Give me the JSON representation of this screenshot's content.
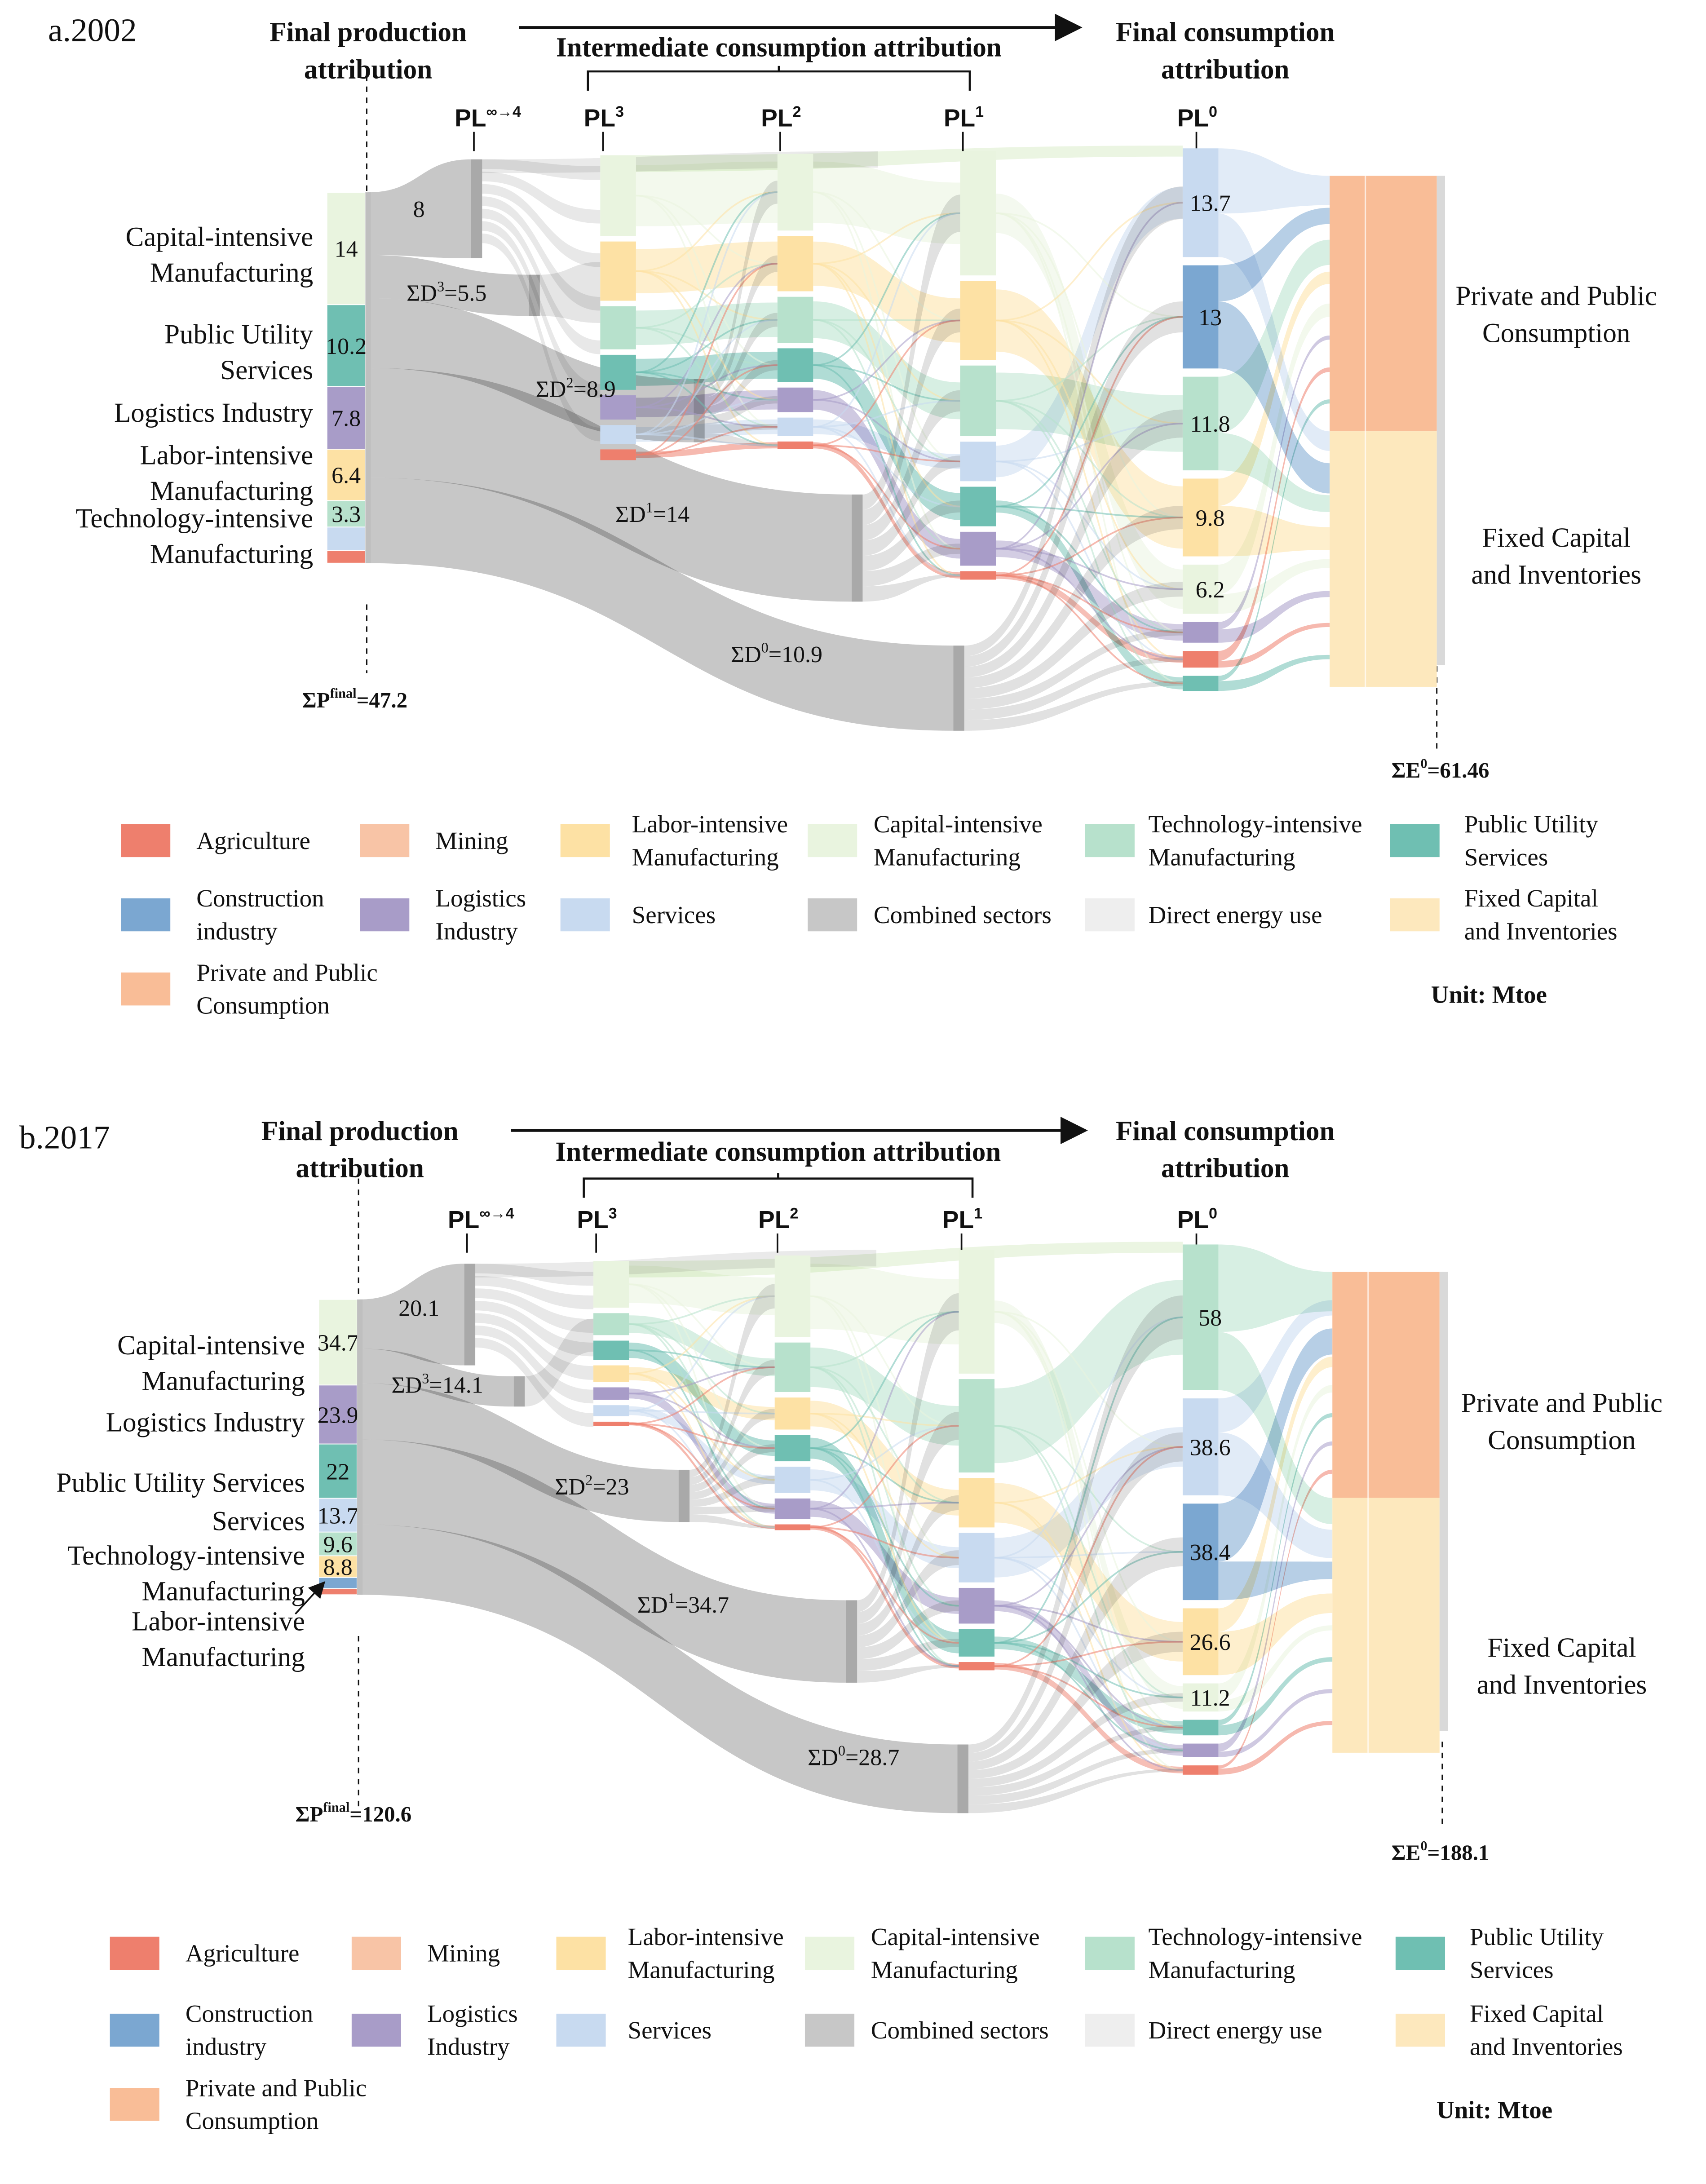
{
  "legend_items": [
    {
      "key": "agriculture",
      "label_lines": [
        "Agriculture"
      ],
      "color": "#ee7f6d"
    },
    {
      "key": "mining",
      "label_lines": [
        "Mining"
      ],
      "color": "#f8c4a6"
    },
    {
      "key": "labor",
      "label_lines": [
        "Labor-intensive",
        "Manufacturing"
      ],
      "color": "#fde1a4"
    },
    {
      "key": "capital",
      "label_lines": [
        "Capital-intensive",
        "Manufacturing"
      ],
      "color": "#e9f4df"
    },
    {
      "key": "technology",
      "label_lines": [
        "Technology-intensive",
        "Manufacturing"
      ],
      "color": "#b7e1cc"
    },
    {
      "key": "utility",
      "label_lines": [
        "Public Utility",
        "Services"
      ],
      "color": "#6fbfb2"
    },
    {
      "key": "construction",
      "label_lines": [
        "Construction",
        "industry"
      ],
      "color": "#7ba7d1"
    },
    {
      "key": "logistics",
      "label_lines": [
        "Logistics",
        "Industry"
      ],
      "color": "#a89cc8"
    },
    {
      "key": "services",
      "label_lines": [
        "Services"
      ],
      "color": "#c8daf0"
    },
    {
      "key": "combined",
      "label_lines": [
        "Combined sectors"
      ],
      "color": "#c7c7c7"
    },
    {
      "key": "direct",
      "label_lines": [
        "Direct energy use"
      ],
      "color": "#eeeeee"
    },
    {
      "key": "fixed_capital",
      "label_lines": [
        "Fixed Capital",
        "and Inventories"
      ],
      "color": "#fde8bd"
    },
    {
      "key": "private_public",
      "label_lines": [
        "Private and Public",
        "Consumption"
      ],
      "color": "#f9bd97"
    }
  ],
  "unit_label": "Unit: Mtoe",
  "headers": {
    "final_production": [
      "Final production",
      "attribution"
    ],
    "intermediate": "Intermediate consumption attribution",
    "final_consumption": [
      "Final consumption",
      "attribution"
    ]
  },
  "panels": [
    {
      "id": "a",
      "title": "a.2002",
      "levels": {
        "pl_inf": "PL",
        "pl_inf_sup": "∞→4",
        "pl3": "PL",
        "pl3_sup": "3",
        "pl2": "PL",
        "pl2_sup": "2",
        "pl1": "PL",
        "pl1_sup": "1",
        "pl0": "PL",
        "pl0_sup": "0"
      },
      "production_total": {
        "prefix": "ΣP",
        "sup": "final",
        "value": "=47.2"
      },
      "consumption_total": {
        "prefix": "ΣE",
        "sup": "0",
        "value": "=61.46"
      },
      "production_sectors": [
        {
          "sector": "capital",
          "value": 14,
          "label": "14"
        },
        {
          "sector": "utility",
          "value": 10.2,
          "label": "10.2"
        },
        {
          "sector": "logistics",
          "value": 7.8,
          "label": "7.8"
        },
        {
          "sector": "labor",
          "value": 6.4,
          "label": "6.4"
        },
        {
          "sector": "technology",
          "value": 3.3,
          "label": "3.3"
        },
        {
          "sector": "services",
          "value": 2.9,
          "label": ""
        },
        {
          "sector": "agriculture",
          "value": 1.6,
          "label": ""
        }
      ],
      "production_labels": [
        {
          "lines": [
            "Capital-intensive",
            "Manufacturing"
          ]
        },
        {
          "lines": [
            "Public Utility",
            "Services"
          ]
        },
        {
          "lines": [
            "Logistics Industry"
          ]
        },
        {
          "lines": [
            "Labor-intensive",
            "Manufacturing"
          ]
        },
        {
          "lines": [
            "Technology-intensive",
            "Manufacturing"
          ]
        }
      ],
      "flow_labels": {
        "pl_inf": "8",
        "d3": {
          "base": "ΣD",
          "sup": "3",
          "value": "=5.5"
        },
        "d2": {
          "base": "ΣD",
          "sup": "2",
          "value": "=8.9"
        },
        "d1": {
          "base": "ΣD",
          "sup": "1",
          "value": "=14"
        },
        "d0": {
          "base": "ΣD",
          "sup": "0",
          "value": "=10.9"
        }
      },
      "consumption_sectors": [
        {
          "sector": "services",
          "value": 13.7,
          "label": "13.7"
        },
        {
          "sector": "construction",
          "value": 13,
          "label": "13"
        },
        {
          "sector": "technology",
          "value": 11.8,
          "label": "11.8"
        },
        {
          "sector": "labor",
          "value": 9.8,
          "label": "9.8"
        },
        {
          "sector": "capital",
          "value": 6.2,
          "label": "6.2"
        },
        {
          "sector": "logistics",
          "value": 2.6,
          "label": ""
        },
        {
          "sector": "agriculture",
          "value": 2.1,
          "label": ""
        },
        {
          "sector": "utility",
          "value": 1.9,
          "label": ""
        }
      ],
      "demand_categories": [
        {
          "key": "private_public",
          "lines": [
            "Private and Public",
            "Consumption"
          ]
        },
        {
          "key": "fixed_capital",
          "lines": [
            "Fixed Capital",
            "and Inventories"
          ]
        }
      ]
    },
    {
      "id": "b",
      "title": "b.2017",
      "levels": {
        "pl_inf": "PL",
        "pl_inf_sup": "∞→4",
        "pl3": "PL",
        "pl3_sup": "3",
        "pl2": "PL",
        "pl2_sup": "2",
        "pl1": "PL",
        "pl1_sup": "1",
        "pl0": "PL",
        "pl0_sup": "0"
      },
      "production_total": {
        "prefix": "ΣP",
        "sup": "final",
        "value": "=120.6"
      },
      "consumption_total": {
        "prefix": "ΣE",
        "sup": "0",
        "value": "=188.1"
      },
      "production_sectors": [
        {
          "sector": "capital",
          "value": 34.7,
          "label": "34.7"
        },
        {
          "sector": "logistics",
          "value": 23.9,
          "label": "23.9"
        },
        {
          "sector": "utility",
          "value": 22,
          "label": "22"
        },
        {
          "sector": "services",
          "value": 13.7,
          "label": "13.7"
        },
        {
          "sector": "technology",
          "value": 9.6,
          "label": "9.6"
        },
        {
          "sector": "labor",
          "value": 8.8,
          "label": "8.8"
        },
        {
          "sector": "construction",
          "value": 4.5,
          "label": ""
        },
        {
          "sector": "agriculture",
          "value": 2.5,
          "label": ""
        }
      ],
      "production_labels": [
        {
          "lines": [
            "Capital-intensive",
            "Manufacturing"
          ]
        },
        {
          "lines": [
            "Logistics Industry"
          ]
        },
        {
          "lines": [
            "Public Utility Services"
          ]
        },
        {
          "lines": [
            "Services"
          ]
        },
        {
          "lines": [
            "Technology-intensive",
            "Manufacturing"
          ]
        },
        {
          "lines": [
            "Labor-intensive",
            "Manufacturing"
          ]
        }
      ],
      "flow_labels": {
        "pl_inf": "20.1",
        "d3": {
          "base": "ΣD",
          "sup": "3",
          "value": "=14.1"
        },
        "d2": {
          "base": "ΣD",
          "sup": "2",
          "value": "=23"
        },
        "d1": {
          "base": "ΣD",
          "sup": "1",
          "value": "=34.7"
        },
        "d0": {
          "base": "ΣD",
          "sup": "0",
          "value": "=28.7"
        }
      },
      "consumption_sectors": [
        {
          "sector": "technology",
          "value": 58,
          "label": "58"
        },
        {
          "sector": "services",
          "value": 38.6,
          "label": "38.6"
        },
        {
          "sector": "construction",
          "value": 38.4,
          "label": "38.4"
        },
        {
          "sector": "labor",
          "value": 26.6,
          "label": "26.6"
        },
        {
          "sector": "capital",
          "value": 11.2,
          "label": "11.2"
        },
        {
          "sector": "utility",
          "value": 6.2,
          "label": ""
        },
        {
          "sector": "logistics",
          "value": 5.4,
          "label": ""
        },
        {
          "sector": "agriculture",
          "value": 3.7,
          "label": ""
        }
      ],
      "demand_categories": [
        {
          "key": "private_public",
          "lines": [
            "Private and Public",
            "Consumption"
          ]
        },
        {
          "key": "fixed_capital",
          "lines": [
            "Fixed Capital",
            "and Inventories"
          ]
        }
      ]
    }
  ]
}
